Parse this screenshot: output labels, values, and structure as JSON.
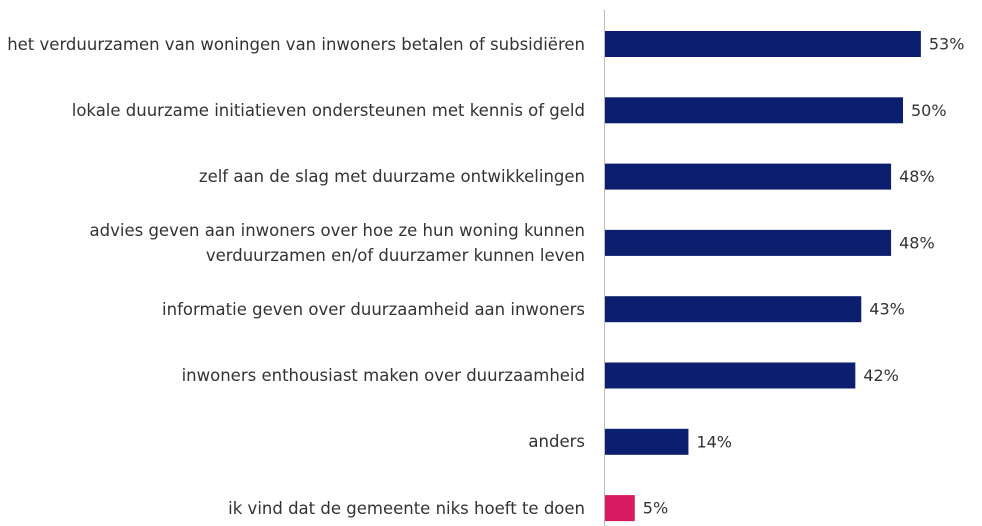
{
  "chart_data": {
    "type": "barh",
    "categories": [
      "het verduurzamen van woningen van inwoners betalen of subsidiëren",
      "lokale duurzame initiatieven ondersteunen met kennis of geld",
      "zelf aan de slag met duurzame ontwikkelingen",
      "advies geven aan inwoners over hoe ze hun woning kunnen verduurzamen en/of duurzamer kunnen leven",
      "informatie geven over duurzaamheid aan inwoners",
      "inwoners enthousiast maken over duurzaamheid",
      "anders",
      "ik vind dat de gemeente niks hoeft te doen"
    ],
    "values": [
      53,
      50,
      48,
      48,
      43,
      42,
      14,
      5
    ],
    "value_labels": [
      "53%",
      "50%",
      "48%",
      "48%",
      "43%",
      "42%",
      "14%",
      "5%"
    ],
    "colors": [
      "#0b1f6e",
      "#0b1f6e",
      "#0b1f6e",
      "#0b1f6e",
      "#0b1f6e",
      "#0b1f6e",
      "#0b1f6e",
      "#d81b60"
    ],
    "xlim": [
      0,
      60
    ]
  }
}
